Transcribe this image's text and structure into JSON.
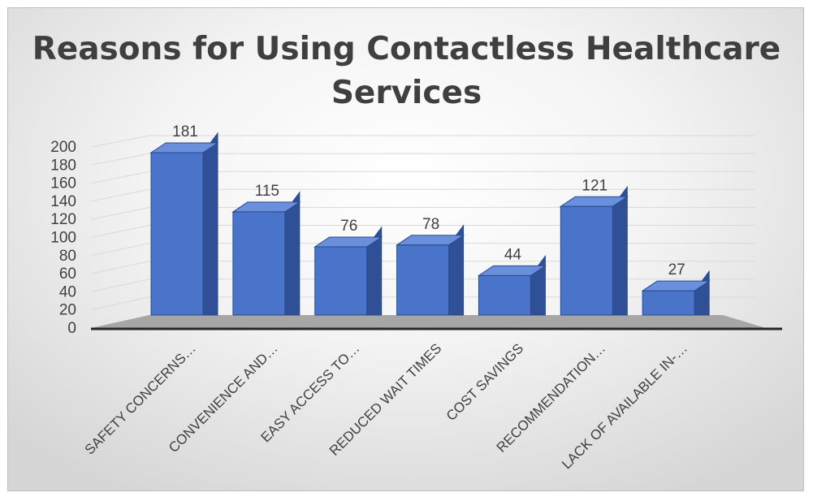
{
  "chart_data": {
    "type": "bar",
    "title": "Reasons for Using Contactless Healthcare Services",
    "categories": [
      "SAFETY CONCERNS…",
      "CONVENIENCE AND…",
      "EASY ACCESS TO…",
      "REDUCED WAIT TIMES",
      "COST SAVINGS",
      "RECOMMENDATION…",
      "LACK OF AVAILABLE IN-…"
    ],
    "values": [
      181,
      115,
      76,
      78,
      44,
      121,
      27
    ],
    "y_ticks": [
      "0",
      "20",
      "40",
      "60",
      "80",
      "100",
      "120",
      "140",
      "160",
      "180",
      "200"
    ],
    "ylim": [
      0,
      200
    ],
    "xlabel": "",
    "ylabel": "",
    "grid": true,
    "legend": "none",
    "style": "3d-column",
    "colors": {
      "bar_front": "#4a74c9",
      "bar_side": "#2f4f96",
      "bar_top": "#6a8fdc",
      "floor": "#a6a6a6",
      "axis": "#262626",
      "gridline": "#d9d9d9"
    }
  }
}
